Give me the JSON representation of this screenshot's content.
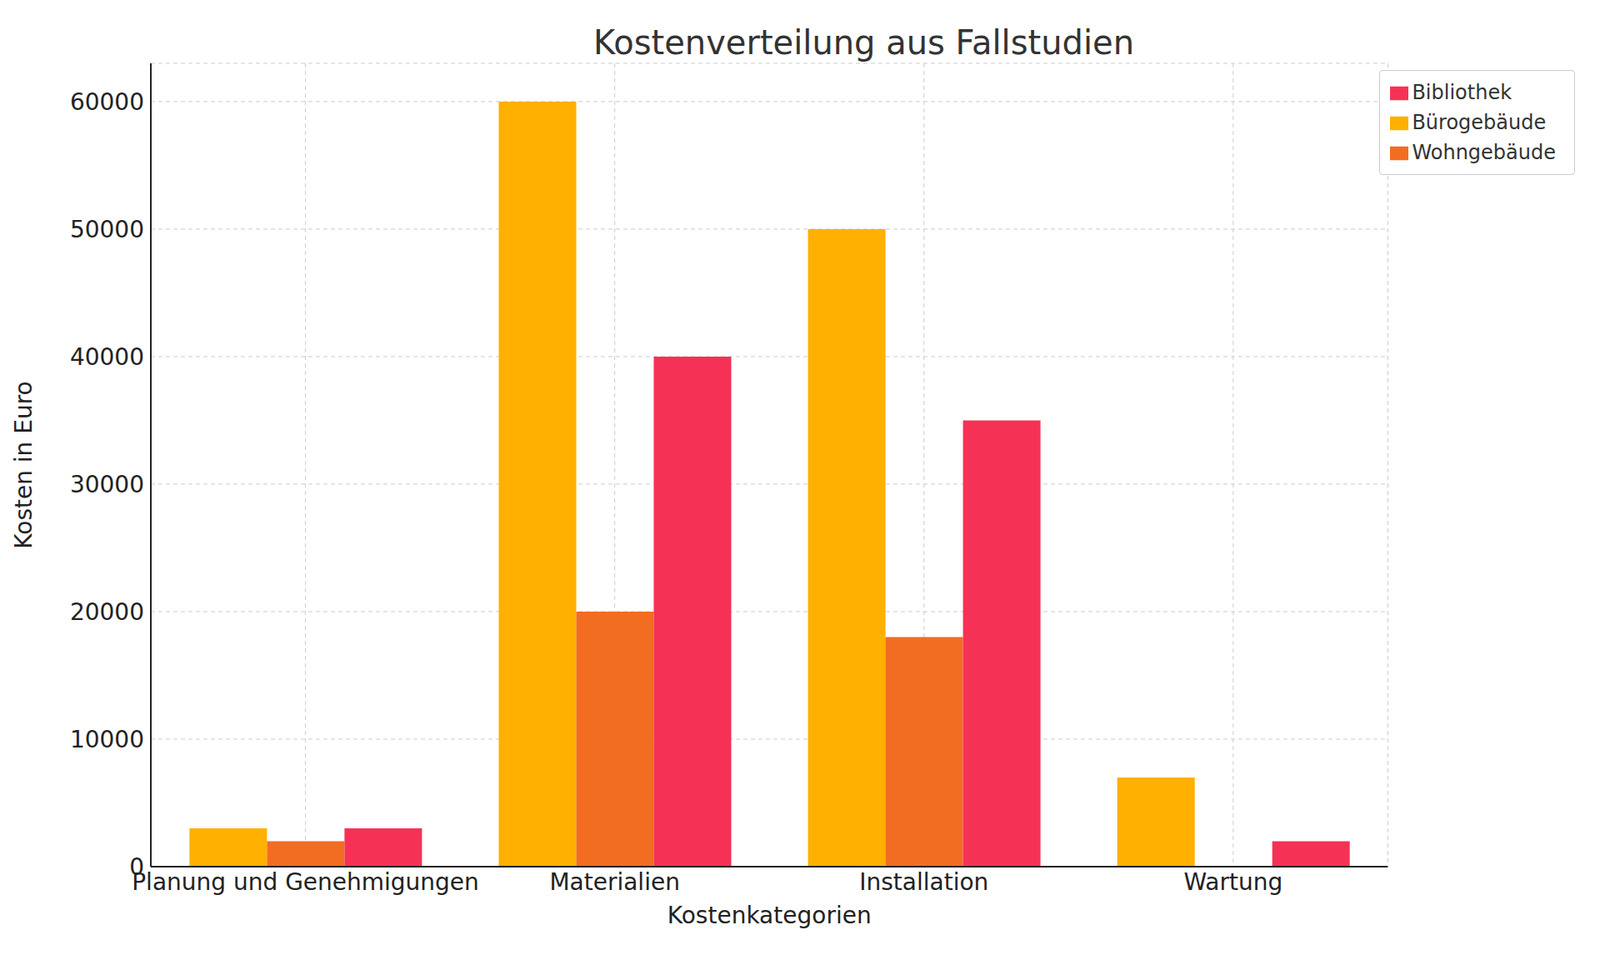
{
  "chart_data": {
    "type": "bar",
    "title": "Kostenverteilung aus Fallstudien",
    "x_label": "Kostenkategorien",
    "y_label": "Kosten in Euro",
    "categories": [
      "Planung und Genehmigungen",
      "Materialien",
      "Installation",
      "Wartung"
    ],
    "series": [
      {
        "name": "Bürogebäude",
        "color": "#FFB000",
        "values": [
          3000,
          60000,
          50000,
          7000
        ]
      },
      {
        "name": "Wohngebäude",
        "color": "#F26C22",
        "values": [
          2000,
          20000,
          18000,
          0
        ]
      },
      {
        "name": "Bibliothek",
        "color": "#F53256",
        "values": [
          3000,
          40000,
          35000,
          2000
        ]
      }
    ],
    "ylim": [
      0,
      63000
    ],
    "yticks": [
      0,
      10000,
      20000,
      30000,
      40000,
      50000,
      60000
    ],
    "grid": true,
    "legend": "upper right"
  }
}
